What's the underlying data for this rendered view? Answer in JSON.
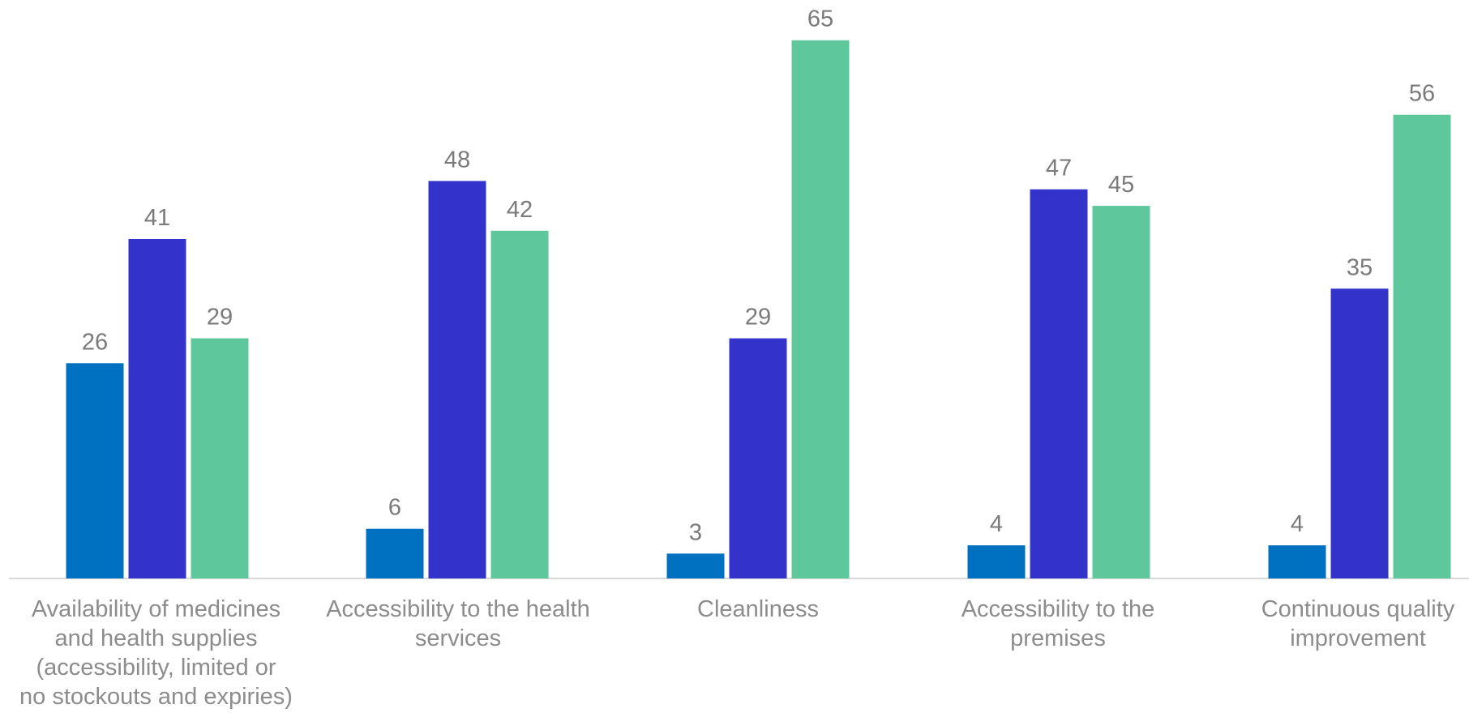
{
  "chart_data": {
    "type": "bar",
    "categories": [
      "Availability of  medicines\nand health supplies\n(accessibility, limited or\nno stockouts and expiries)",
      "Accessibility to the health\nservices",
      "Cleanliness",
      "Accessibility to the\npremises",
      "Continuous quality\nimprovement"
    ],
    "series": [
      {
        "values": [
          26,
          6,
          3,
          4,
          4
        ],
        "color": "#0070c0"
      },
      {
        "values": [
          41,
          48,
          29,
          47,
          35
        ],
        "color": "#3333cc"
      },
      {
        "values": [
          29,
          42,
          65,
          45,
          56
        ],
        "color": "#5ec89c"
      }
    ],
    "ylim": [
      0,
      70
    ],
    "grid": false,
    "legend": "none",
    "data_labels": true
  }
}
